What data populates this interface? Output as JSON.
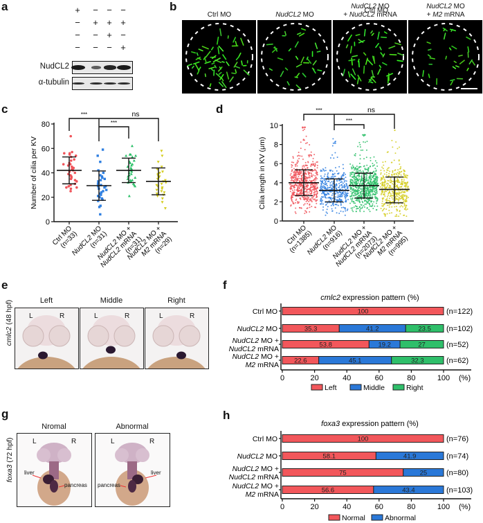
{
  "panel_labels": {
    "a": "a",
    "b": "b",
    "c": "c",
    "d": "d",
    "e": "e",
    "f": "f",
    "g": "g",
    "h": "h"
  },
  "panel_a": {
    "rows": [
      {
        "label_italic": "",
        "label_plain": "Ctrl MO",
        "signs": [
          "+",
          "−",
          "−",
          "−"
        ]
      },
      {
        "label_italic": "NudCL2",
        "label_plain": " MO",
        "signs": [
          "−",
          "+",
          "+",
          "+"
        ]
      },
      {
        "label_italic": "NudCL2",
        "label_plain": " mRNA",
        "signs": [
          "−",
          "−",
          "+",
          "−"
        ]
      },
      {
        "label_italic": "M2 mRNA",
        "label_plain": "",
        "signs": [
          "−",
          "−",
          "−",
          "+"
        ]
      }
    ],
    "blots": [
      {
        "label": "NudCL2",
        "band_intensity": [
          1.0,
          0.35,
          0.9,
          1.0
        ]
      },
      {
        "label": "α-tubulin",
        "band_intensity": [
          0.8,
          0.8,
          0.8,
          0.8
        ]
      }
    ]
  },
  "panel_b": {
    "images": [
      {
        "title_line1_italic": "",
        "title_line1_plain": "Ctrl MO",
        "title_line2_italic": "",
        "title_line2_plain": "",
        "cilia_density": 1.0
      },
      {
        "title_line1_italic": "NudCL2",
        "title_line1_plain": " MO",
        "title_line2_italic": "",
        "title_line2_plain": "",
        "cilia_density": 0.55
      },
      {
        "title_line1_italic": "NudCL2",
        "title_line1_plain": " MO",
        "title_line2_pre": "+ ",
        "title_line2_italic": "NudCL2",
        "title_line2_plain": " mRNA",
        "cilia_density": 0.85
      },
      {
        "title_line1_italic": "NudCL2",
        "title_line1_plain": " MO",
        "title_line2_pre": "+ ",
        "title_line2_italic": "M2",
        "title_line2_plain": " mRNA",
        "cilia_density": 0.5
      }
    ],
    "scale_bar": true
  },
  "chart_data": [
    {
      "id": "c",
      "type": "scatter",
      "ylabel": "Number of cilia per KV",
      "ylim": [
        0,
        80
      ],
      "yticks": [
        0,
        20,
        40,
        60,
        80
      ],
      "categories": [
        {
          "line1": "Ctrl MO",
          "line1_italic": false,
          "line2": "(n=33)",
          "line3": ""
        },
        {
          "line1": "NudCL2 MO",
          "line1_italic": true,
          "line2": "(n=31)",
          "line3": ""
        },
        {
          "line1": "NudCL2 MO +",
          "line1_italic": true,
          "line2": "NudCL2 mRNA",
          "line3": "(n=31)"
        },
        {
          "line1": "NudCL2 MO +",
          "line1_italic": true,
          "line2": "M2 mRNA",
          "line3": "(n=29)"
        }
      ],
      "colors": [
        "#f0545a",
        "#2f7fe0",
        "#2ec06a",
        "#d4cc1e"
      ],
      "markers": [
        "circle",
        "square",
        "triangle",
        "triangle-down"
      ],
      "series": [
        {
          "name": "Ctrl MO",
          "n": 33,
          "mean": 42,
          "sd_low": 31,
          "sd_high": 53,
          "values": [
            70,
            57,
            56,
            56,
            55,
            54,
            53,
            51,
            50,
            48,
            47,
            47,
            46,
            45,
            44,
            43,
            42,
            41,
            40,
            39,
            38,
            37,
            36,
            35,
            34,
            33,
            31,
            30,
            29,
            28,
            28,
            27,
            25
          ]
        },
        {
          "name": "NudCL2 MO",
          "n": 31,
          "mean": 29.5,
          "sd_low": 17.5,
          "sd_high": 41.5,
          "values": [
            59,
            54,
            49,
            42,
            40,
            38,
            37,
            36,
            35,
            33,
            32,
            31,
            30,
            29,
            29,
            28,
            27,
            26,
            25,
            24,
            23,
            22,
            21,
            20,
            19,
            18,
            17,
            13,
            12,
            6,
            34
          ]
        },
        {
          "name": "NudCL2 MO + NudCL2 mRNA",
          "n": 31,
          "mean": 42,
          "sd_low": 32,
          "sd_high": 52,
          "values": [
            62,
            55,
            55,
            54,
            54,
            53,
            50,
            49,
            47,
            46,
            45,
            44,
            43,
            42,
            41,
            40,
            39,
            38,
            37,
            36,
            35,
            34,
            34,
            33,
            33,
            32,
            31,
            30,
            29,
            21,
            48
          ]
        },
        {
          "name": "NudCL2 MO + M2 mRNA",
          "n": 29,
          "mean": 33,
          "sd_low": 22,
          "sd_high": 44,
          "values": [
            58,
            54,
            49,
            45,
            43,
            41,
            40,
            39,
            38,
            37,
            36,
            35,
            34,
            33,
            32,
            31,
            30,
            29,
            28,
            27,
            26,
            25,
            24,
            23,
            22,
            21,
            19,
            16,
            11
          ]
        }
      ],
      "significance": [
        {
          "from": 0,
          "to": 1,
          "label": "***"
        },
        {
          "from": 1,
          "to": 2,
          "label": "***"
        },
        {
          "from": 1,
          "to": 3,
          "label": "ns"
        }
      ]
    },
    {
      "id": "d",
      "type": "scatter",
      "ylabel": "Cilia length in KV (μm)",
      "ylim": [
        0,
        10
      ],
      "yticks": [
        0,
        2,
        4,
        6,
        8,
        10
      ],
      "categories": [
        {
          "line1": "Ctrl MO",
          "line1_italic": false,
          "line2": "(n=1385)",
          "line3": ""
        },
        {
          "line1": "NudCL2 MO",
          "line1_italic": true,
          "line2": "(n=916)",
          "line3": ""
        },
        {
          "line1": "NudCL2 MO +",
          "line1_italic": true,
          "line2": "NudCL2 mRNA",
          "line3": "(n=2073)"
        },
        {
          "line1": "NudCL2 MO +",
          "line1_italic": true,
          "line2": "M2 mRNA",
          "line3": "(n=995)"
        }
      ],
      "colors": [
        "#f0545a",
        "#2f7fe0",
        "#2ec06a",
        "#d4cc1e"
      ],
      "series": [
        {
          "name": "Ctrl MO",
          "n": 1385,
          "mean": 4.0,
          "sd_low": 2.65,
          "sd_high": 5.35,
          "min": 0.8,
          "max": 9.8
        },
        {
          "name": "NudCL2 MO",
          "n": 916,
          "mean": 3.2,
          "sd_low": 2.0,
          "sd_high": 4.4,
          "min": 0.6,
          "max": 8.6
        },
        {
          "name": "NudCL2 MO + NudCL2 mRNA",
          "n": 2073,
          "mean": 3.7,
          "sd_low": 2.4,
          "sd_high": 5.0,
          "min": 1.0,
          "max": 9.0
        },
        {
          "name": "NudCL2 MO + M2 mRNA",
          "n": 995,
          "mean": 3.3,
          "sd_low": 1.9,
          "sd_high": 4.6,
          "min": 0.5,
          "max": 9.5
        }
      ],
      "significance": [
        {
          "from": 0,
          "to": 1,
          "label": "***"
        },
        {
          "from": 1,
          "to": 2,
          "label": "***"
        },
        {
          "from": 1,
          "to": 3,
          "label": "ns"
        }
      ]
    },
    {
      "id": "f",
      "type": "bar",
      "orientation": "horizontal-stacked",
      "title_italic": "cmlc2",
      "title_plain": " expression pattern (%)",
      "xlim": [
        0,
        100
      ],
      "xticks": [
        0,
        20,
        40,
        60,
        80,
        100
      ],
      "x_unit": "(%)",
      "categories": [
        {
          "line1_italic": "",
          "line1_plain": "Ctrl MO",
          "line2_italic": "",
          "line2_plain": ""
        },
        {
          "line1_italic": "NudCL2",
          "line1_plain": " MO",
          "line2_italic": "",
          "line2_plain": ""
        },
        {
          "line1_italic": "NudCL2",
          "line1_plain": " MO +",
          "line2_italic": "NudCL2",
          "line2_plain": " mRNA"
        },
        {
          "line1_italic": "NudCL2",
          "line1_plain": " MO +",
          "line2_italic": "M2",
          "line2_plain": " mRNA"
        }
      ],
      "n_labels": [
        "(n=122)",
        "(n=102)",
        "(n=52)",
        "(n=62)"
      ],
      "series": [
        {
          "name": "Left",
          "color": "#f2575b",
          "values": [
            100,
            35.3,
            53.8,
            22.6
          ]
        },
        {
          "name": "Middle",
          "color": "#2a78d8",
          "values": [
            0,
            41.2,
            19.2,
            45.1
          ]
        },
        {
          "name": "Right",
          "color": "#2fbf6a",
          "values": [
            0,
            23.5,
            27,
            32.3
          ]
        }
      ],
      "value_labels": [
        [
          "100"
        ],
        [
          "35.3",
          "41.2",
          "23.5"
        ],
        [
          "53.8",
          "19.2",
          "27"
        ],
        [
          "22.6",
          "45.1",
          "32.3"
        ]
      ],
      "legend": "bottom"
    },
    {
      "id": "h",
      "type": "bar",
      "orientation": "horizontal-stacked",
      "title_italic": "foxa3",
      "title_plain": " expression pattern (%)",
      "xlim": [
        0,
        100
      ],
      "xticks": [
        0,
        20,
        40,
        60,
        80,
        100
      ],
      "x_unit": "(%)",
      "categories": [
        {
          "line1_italic": "",
          "line1_plain": "Ctrl MO",
          "line2_italic": "",
          "line2_plain": ""
        },
        {
          "line1_italic": "NudCL2",
          "line1_plain": " MO",
          "line2_italic": "",
          "line2_plain": ""
        },
        {
          "line1_italic": "NudCL2",
          "line1_plain": " MO +",
          "line2_italic": "NudCL2",
          "line2_plain": " mRNA"
        },
        {
          "line1_italic": "NudCL2",
          "line1_plain": " MO +",
          "line2_italic": "M2",
          "line2_plain": " mRNA"
        }
      ],
      "n_labels": [
        "(n=76)",
        "(n=74)",
        "(n=80)",
        "(n=103)"
      ],
      "series": [
        {
          "name": "Normal",
          "color": "#f2575b",
          "values": [
            100,
            58.1,
            75,
            56.6
          ]
        },
        {
          "name": "Abnormal",
          "color": "#2a78d8",
          "values": [
            0,
            41.9,
            25,
            43.4
          ]
        }
      ],
      "value_labels": [
        [
          "100"
        ],
        [
          "58.1",
          "41.9"
        ],
        [
          "75",
          "25"
        ],
        [
          "56.6",
          "43.4"
        ]
      ],
      "legend": "bottom"
    }
  ],
  "panel_e": {
    "ylabel_italic": "cmlc2",
    "ylabel_plain": " (48 hpf)",
    "images": [
      {
        "title": "Left",
        "L": "L",
        "R": "R",
        "heart_side": "left"
      },
      {
        "title": "Middle",
        "L": "L",
        "R": "R",
        "heart_side": "middle"
      },
      {
        "title": "Right",
        "L": "L",
        "R": "R",
        "heart_side": "right"
      }
    ]
  },
  "panel_g": {
    "ylabel_italic": "foxa3",
    "ylabel_plain": " (72 hpf)",
    "images": [
      {
        "title": "Nromal",
        "L": "L",
        "R": "R",
        "liver_label": "liver",
        "pancreas_label": "pancreas",
        "liver_side": "left"
      },
      {
        "title": "Abnormal",
        "L": "L",
        "R": "R",
        "liver_label": "liver",
        "pancreas_label": "pancreas",
        "liver_side": "right"
      }
    ]
  }
}
